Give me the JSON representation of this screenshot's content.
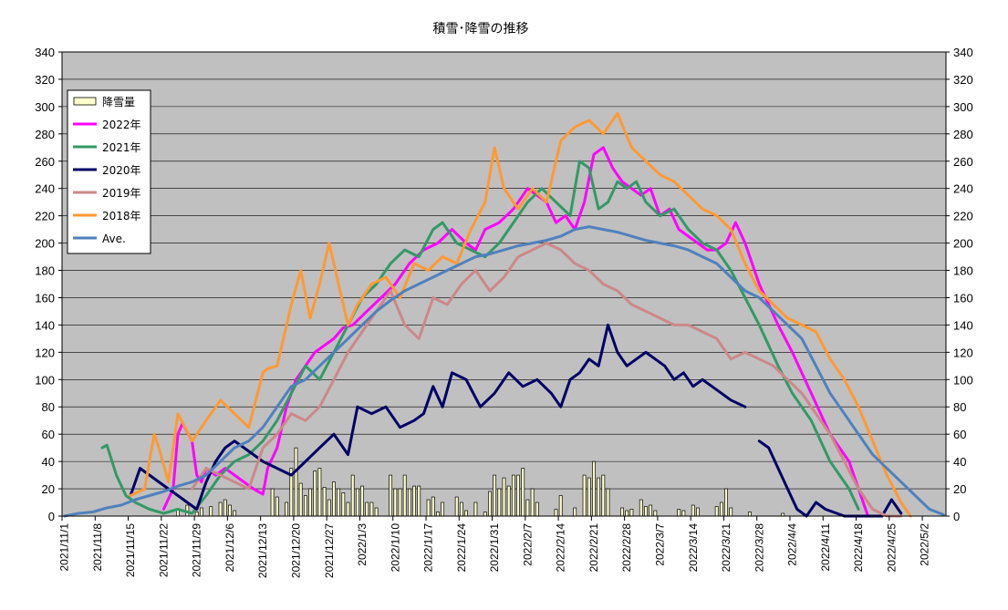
{
  "chart_data": {
    "type": "line",
    "title": "積雪･降雪の推移",
    "xlabel": "",
    "ylabel": "",
    "ylim": [
      0,
      340
    ],
    "y_ticks": [
      0,
      20,
      40,
      60,
      80,
      100,
      120,
      140,
      160,
      180,
      200,
      220,
      240,
      260,
      280,
      300,
      320,
      340
    ],
    "x_start": "2021/11/1",
    "x_end": "2022/5/6",
    "x_tick_labels": [
      "2021/11/1",
      "2021/11/8",
      "2021/11/15",
      "2021/11/22",
      "2021/11/29",
      "2021/12/6",
      "2021/12/13",
      "2021/12/20",
      "2021/12/27",
      "2022/1/3",
      "2022/1/10",
      "2022/1/17",
      "2022/1/24",
      "2022/1/31",
      "2022/2/7",
      "2022/2/14",
      "2022/2/21",
      "2022/2/28",
      "2022/3/7",
      "2022/3/14",
      "2022/3/21",
      "2022/3/28",
      "2022/4/4",
      "2022/4/11",
      "2022/4/18",
      "2022/4/25",
      "2022/5/2"
    ],
    "grid": true,
    "legend_position": "top-left",
    "bar_series": {
      "name": "降雪量",
      "color": "#ffffcc",
      "x": [
        "2021/11/25",
        "2021/11/27",
        "2021/11/29",
        "2021/11/30",
        "2021/12/2",
        "2021/12/4",
        "2021/12/5",
        "2021/12/6",
        "2021/12/7",
        "2021/12/15",
        "2021/12/16",
        "2021/12/18",
        "2021/12/19",
        "2021/12/20",
        "2021/12/21",
        "2021/12/22",
        "2021/12/23",
        "2021/12/24",
        "2021/12/25",
        "2021/12/26",
        "2021/12/27",
        "2021/12/28",
        "2021/12/29",
        "2021/12/30",
        "2021/12/31",
        "2022/1/1",
        "2022/1/2",
        "2022/1/3",
        "2022/1/4",
        "2022/1/5",
        "2022/1/6",
        "2022/1/9",
        "2022/1/10",
        "2022/1/11",
        "2022/1/12",
        "2022/1/13",
        "2022/1/14",
        "2022/1/15",
        "2022/1/17",
        "2022/1/18",
        "2022/1/19",
        "2022/1/20",
        "2022/1/23",
        "2022/1/24",
        "2022/1/25",
        "2022/1/27",
        "2022/1/29",
        "2022/1/30",
        "2022/1/31",
        "2022/2/1",
        "2022/2/2",
        "2022/2/3",
        "2022/2/4",
        "2022/2/5",
        "2022/2/6",
        "2022/2/7",
        "2022/2/8",
        "2022/2/9",
        "2022/2/13",
        "2022/2/14",
        "2022/2/17",
        "2022/2/19",
        "2022/2/20",
        "2022/2/21",
        "2022/2/22",
        "2022/2/23",
        "2022/2/24",
        "2022/2/27",
        "2022/2/28",
        "2022/3/1",
        "2022/3/3",
        "2022/3/4",
        "2022/3/5",
        "2022/3/6",
        "2022/3/11",
        "2022/3/12",
        "2022/3/14",
        "2022/3/15",
        "2022/3/19",
        "2022/3/20",
        "2022/3/21",
        "2022/3/22",
        "2022/3/26",
        "2022/4/2"
      ],
      "values": [
        5,
        8,
        3,
        6,
        7,
        10,
        12,
        8,
        4,
        20,
        14,
        10,
        35,
        50,
        24,
        15,
        20,
        33,
        35,
        21,
        12,
        25,
        20,
        17,
        10,
        30,
        20,
        22,
        10,
        10,
        6,
        30,
        20,
        20,
        30,
        20,
        22,
        22,
        12,
        14,
        3,
        10,
        14,
        10,
        4,
        10,
        3,
        18,
        30,
        20,
        28,
        22,
        30,
        30,
        35,
        12,
        20,
        10,
        5,
        15,
        6,
        30,
        28,
        40,
        28,
        30,
        20,
        6,
        4,
        5,
        12,
        7,
        8,
        4,
        5,
        4,
        8,
        6,
        7,
        10,
        20,
        6,
        3,
        2
      ]
    },
    "series": [
      {
        "name": "2022年",
        "color": "#ff00ff",
        "x": [
          "2021/11/22",
          "2021/11/24",
          "2021/11/25",
          "2021/11/26",
          "2021/11/28",
          "2021/11/29",
          "2021/11/30",
          "2021/12/1",
          "2021/12/3",
          "2021/12/5",
          "2021/12/7",
          "2021/12/9",
          "2021/12/11",
          "2021/12/12",
          "2021/12/13",
          "2021/12/14",
          "2021/12/16",
          "2021/12/18",
          "2021/12/20",
          "2021/12/22",
          "2021/12/24",
          "2021/12/26",
          "2021/12/28",
          "2021/12/30",
          "2022/1/1",
          "2022/1/4",
          "2022/1/7",
          "2022/1/10",
          "2022/1/13",
          "2022/1/16",
          "2022/1/19",
          "2022/1/22",
          "2022/1/25",
          "2022/1/27",
          "2022/1/29",
          "2022/2/1",
          "2022/2/4",
          "2022/2/7",
          "2022/2/9",
          "2022/2/11",
          "2022/2/13",
          "2022/2/15",
          "2022/2/17",
          "2022/2/19",
          "2022/2/21",
          "2022/2/23",
          "2022/2/25",
          "2022/2/27",
          "2022/3/1",
          "2022/3/3",
          "2022/3/5",
          "2022/3/7",
          "2022/3/9",
          "2022/3/11",
          "2022/3/13",
          "2022/3/15",
          "2022/3/17",
          "2022/3/19",
          "2022/3/21",
          "2022/3/23",
          "2022/3/25",
          "2022/3/28",
          "2022/4/1",
          "2022/4/4",
          "2022/4/8",
          "2022/4/12",
          "2022/4/16",
          "2022/4/19",
          "2022/4/20"
        ],
        "values": [
          5,
          20,
          60,
          68,
          55,
          30,
          25,
          35,
          30,
          35,
          30,
          25,
          20,
          18,
          16,
          35,
          50,
          80,
          100,
          110,
          120,
          125,
          130,
          138,
          140,
          150,
          160,
          170,
          185,
          195,
          200,
          210,
          200,
          195,
          210,
          215,
          225,
          240,
          235,
          230,
          215,
          220,
          210,
          230,
          265,
          270,
          255,
          245,
          240,
          235,
          240,
          220,
          225,
          210,
          205,
          200,
          195,
          195,
          200,
          215,
          200,
          170,
          140,
          120,
          90,
          60,
          40,
          10,
          0
        ]
      },
      {
        "name": "2021年",
        "color": "#339966",
        "x": [
          "2021/11/9",
          "2021/11/10",
          "2021/11/12",
          "2021/11/14",
          "2021/11/16",
          "2021/11/19",
          "2021/11/22",
          "2021/11/25",
          "2021/11/28",
          "2021/12/1",
          "2021/12/4",
          "2021/12/7",
          "2021/12/10",
          "2021/12/13",
          "2021/12/16",
          "2021/12/19",
          "2021/12/22",
          "2021/12/25",
          "2021/12/28",
          "2021/12/31",
          "2022/1/3",
          "2022/1/6",
          "2022/1/9",
          "2022/1/12",
          "2022/1/15",
          "2022/1/18",
          "2022/1/20",
          "2022/1/23",
          "2022/1/26",
          "2022/1/29",
          "2022/2/1",
          "2022/2/4",
          "2022/2/7",
          "2022/2/10",
          "2022/2/13",
          "2022/2/16",
          "2022/2/18",
          "2022/2/20",
          "2022/2/22",
          "2022/2/24",
          "2022/2/26",
          "2022/2/28",
          "2022/3/2",
          "2022/3/4",
          "2022/3/7",
          "2022/3/10",
          "2022/3/13",
          "2022/3/16",
          "2022/3/19",
          "2022/3/22",
          "2022/3/25",
          "2022/3/28",
          "2022/4/1",
          "2022/4/4",
          "2022/4/8",
          "2022/4/12",
          "2022/4/16",
          "2022/4/18"
        ],
        "values": [
          50,
          52,
          30,
          15,
          10,
          5,
          2,
          5,
          2,
          15,
          30,
          40,
          45,
          55,
          70,
          90,
          110,
          100,
          120,
          140,
          160,
          170,
          185,
          195,
          190,
          210,
          215,
          200,
          195,
          190,
          200,
          215,
          230,
          240,
          230,
          220,
          260,
          255,
          225,
          230,
          245,
          240,
          245,
          230,
          220,
          225,
          210,
          200,
          195,
          180,
          160,
          140,
          110,
          90,
          70,
          40,
          20,
          5
        ]
      },
      {
        "name": "2020年",
        "color": "#000066",
        "x": [
          "2021/11/15",
          "2021/11/17",
          "2021/11/19",
          "2021/11/21",
          "2021/11/23",
          "2021/11/25",
          "2021/11/27",
          "2021/11/29",
          "2021/12/1",
          "2021/12/3",
          "2021/12/5",
          "2021/12/7",
          "2021/12/9",
          "2021/12/11",
          "2021/12/13",
          "2021/12/16",
          "2021/12/19",
          "2021/12/22",
          "2021/12/25",
          "2021/12/28",
          "2021/12/31",
          "2022/1/2",
          "2022/1/5",
          "2022/1/8",
          "2022/1/11",
          "2022/1/14",
          "2022/1/16",
          "2022/1/18",
          "2022/1/20",
          "2022/1/22",
          "2022/1/25",
          "2022/1/28",
          "2022/1/31",
          "2022/2/3",
          "2022/2/6",
          "2022/2/9",
          "2022/2/12",
          "2022/2/14",
          "2022/2/16",
          "2022/2/18",
          "2022/2/20",
          "2022/2/22",
          "2022/2/24",
          "2022/2/26",
          "2022/2/28",
          "2022/3/2",
          "2022/3/4",
          "2022/3/6",
          "2022/3/8",
          "2022/3/10",
          "2022/3/12",
          "2022/3/14",
          "2022/3/16",
          "2022/3/18",
          "2022/3/20",
          "2022/3/22",
          "2022/3/25"
        ],
        "values": [
          15,
          35,
          30,
          25,
          20,
          15,
          10,
          5,
          25,
          40,
          50,
          55,
          50,
          45,
          40,
          35,
          30,
          40,
          50,
          60,
          45,
          80,
          75,
          80,
          65,
          70,
          75,
          95,
          80,
          105,
          100,
          80,
          90,
          105,
          95,
          100,
          90,
          80,
          100,
          105,
          115,
          110,
          140,
          120,
          110,
          115,
          120,
          115,
          110,
          100,
          105,
          95,
          100,
          95,
          90,
          85,
          80
        ]
      },
      {
        "name": "2020年",
        "color": "#000066",
        "x": [
          "2022/3/28",
          "2022/3/30",
          "2022/4/1",
          "2022/4/3",
          "2022/4/5",
          "2022/4/7",
          "2022/4/9",
          "2022/4/11",
          "2022/4/15",
          "2022/4/20",
          "2022/4/23",
          "2022/4/25",
          "2022/4/27"
        ],
        "values": [
          55,
          50,
          35,
          20,
          5,
          0,
          10,
          5,
          0,
          0,
          0,
          12,
          2
        ]
      },
      {
        "name": "2019年",
        "color": "#cc8888",
        "x": [
          "2021/11/28",
          "2021/12/1",
          "2021/12/4",
          "2021/12/7",
          "2021/12/10",
          "2021/12/13",
          "2021/12/16",
          "2021/12/19",
          "2021/12/22",
          "2021/12/25",
          "2021/12/28",
          "2021/12/31",
          "2022/1/3",
          "2022/1/6",
          "2022/1/9",
          "2022/1/12",
          "2022/1/15",
          "2022/1/18",
          "2022/1/21",
          "2022/1/24",
          "2022/1/27",
          "2022/1/30",
          "2022/2/2",
          "2022/2/5",
          "2022/2/8",
          "2022/2/11",
          "2022/2/14",
          "2022/2/17",
          "2022/2/20",
          "2022/2/23",
          "2022/2/26",
          "2022/3/1",
          "2022/3/4",
          "2022/3/7",
          "2022/3/10",
          "2022/3/13",
          "2022/3/16",
          "2022/3/19",
          "2022/3/22",
          "2022/3/25",
          "2022/3/28",
          "2022/3/31",
          "2022/4/3",
          "2022/4/6",
          "2022/4/9",
          "2022/4/12",
          "2022/4/15",
          "2022/4/18",
          "2022/4/21",
          "2022/4/24",
          "2022/4/27"
        ],
        "values": [
          20,
          35,
          30,
          25,
          20,
          50,
          60,
          75,
          70,
          80,
          100,
          120,
          135,
          150,
          165,
          140,
          130,
          160,
          155,
          170,
          180,
          165,
          175,
          190,
          195,
          200,
          195,
          185,
          180,
          170,
          165,
          155,
          150,
          145,
          140,
          140,
          135,
          130,
          115,
          120,
          115,
          110,
          100,
          90,
          75,
          60,
          40,
          20,
          5,
          0,
          0
        ]
      },
      {
        "name": "2018年",
        "color": "#ff9933",
        "x": [
          "2021/11/15",
          "2021/11/18",
          "2021/11/20",
          "2021/11/21",
          "2021/11/23",
          "2021/11/25",
          "2021/11/28",
          "2021/12/1",
          "2021/12/4",
          "2021/12/7",
          "2021/12/10",
          "2021/12/13",
          "2021/12/14",
          "2021/12/16",
          "2021/12/19",
          "2021/12/21",
          "2021/12/23",
          "2021/12/25",
          "2021/12/27",
          "2021/12/29",
          "2021/12/31",
          "2022/1/2",
          "2022/1/5",
          "2022/1/8",
          "2022/1/11",
          "2022/1/14",
          "2022/1/17",
          "2022/1/20",
          "2022/1/23",
          "2022/1/26",
          "2022/1/29",
          "2022/1/31",
          "2022/2/2",
          "2022/2/5",
          "2022/2/8",
          "2022/2/11",
          "2022/2/14",
          "2022/2/17",
          "2022/2/20",
          "2022/2/23",
          "2022/2/26",
          "2022/3/1",
          "2022/3/4",
          "2022/3/7",
          "2022/3/10",
          "2022/3/13",
          "2022/3/16",
          "2022/3/19",
          "2022/3/22",
          "2022/3/25",
          "2022/3/28",
          "2022/3/31",
          "2022/4/3",
          "2022/4/6",
          "2022/4/9",
          "2022/4/12",
          "2022/4/15",
          "2022/4/18",
          "2022/4/21",
          "2022/4/24",
          "2022/4/27",
          "2022/4/29"
        ],
        "values": [
          15,
          20,
          60,
          50,
          25,
          75,
          55,
          70,
          85,
          75,
          65,
          105,
          108,
          110,
          155,
          180,
          145,
          170,
          200,
          170,
          140,
          155,
          170,
          175,
          160,
          185,
          180,
          190,
          185,
          210,
          230,
          270,
          240,
          225,
          240,
          230,
          275,
          285,
          290,
          280,
          295,
          270,
          260,
          250,
          245,
          235,
          225,
          220,
          210,
          185,
          165,
          155,
          145,
          140,
          135,
          115,
          100,
          80,
          55,
          30,
          10,
          0
        ]
      },
      {
        "name": "Ave.",
        "color": "#4f81bd",
        "x": [
          "2021/11/1",
          "2021/11/4",
          "2021/11/7",
          "2021/11/10",
          "2021/11/13",
          "2021/11/16",
          "2021/11/19",
          "2021/11/22",
          "2021/11/25",
          "2021/11/28",
          "2021/12/1",
          "2021/12/4",
          "2021/12/7",
          "2021/12/10",
          "2021/12/13",
          "2021/12/16",
          "2021/12/19",
          "2021/12/22",
          "2021/12/25",
          "2021/12/28",
          "2021/12/31",
          "2022/1/3",
          "2022/1/6",
          "2022/1/9",
          "2022/1/12",
          "2022/1/15",
          "2022/1/18",
          "2022/1/21",
          "2022/1/24",
          "2022/1/27",
          "2022/1/30",
          "2022/2/2",
          "2022/2/5",
          "2022/2/8",
          "2022/2/11",
          "2022/2/14",
          "2022/2/17",
          "2022/2/20",
          "2022/2/23",
          "2022/2/26",
          "2022/3/1",
          "2022/3/4",
          "2022/3/7",
          "2022/3/10",
          "2022/3/13",
          "2022/3/16",
          "2022/3/19",
          "2022/3/22",
          "2022/3/25",
          "2022/3/28",
          "2022/3/31",
          "2022/4/3",
          "2022/4/6",
          "2022/4/9",
          "2022/4/12",
          "2022/4/15",
          "2022/4/18",
          "2022/4/21",
          "2022/4/24",
          "2022/4/27",
          "2022/4/30",
          "2022/5/3",
          "2022/5/6"
        ],
        "values": [
          0,
          2,
          3,
          6,
          8,
          12,
          15,
          18,
          22,
          25,
          30,
          40,
          50,
          55,
          65,
          80,
          95,
          100,
          110,
          120,
          130,
          140,
          150,
          158,
          165,
          170,
          175,
          180,
          185,
          190,
          192,
          195,
          198,
          200,
          202,
          205,
          210,
          212,
          210,
          208,
          205,
          202,
          200,
          198,
          195,
          190,
          185,
          175,
          165,
          160,
          150,
          140,
          130,
          110,
          90,
          75,
          60,
          45,
          35,
          25,
          15,
          5,
          1
        ]
      }
    ]
  }
}
